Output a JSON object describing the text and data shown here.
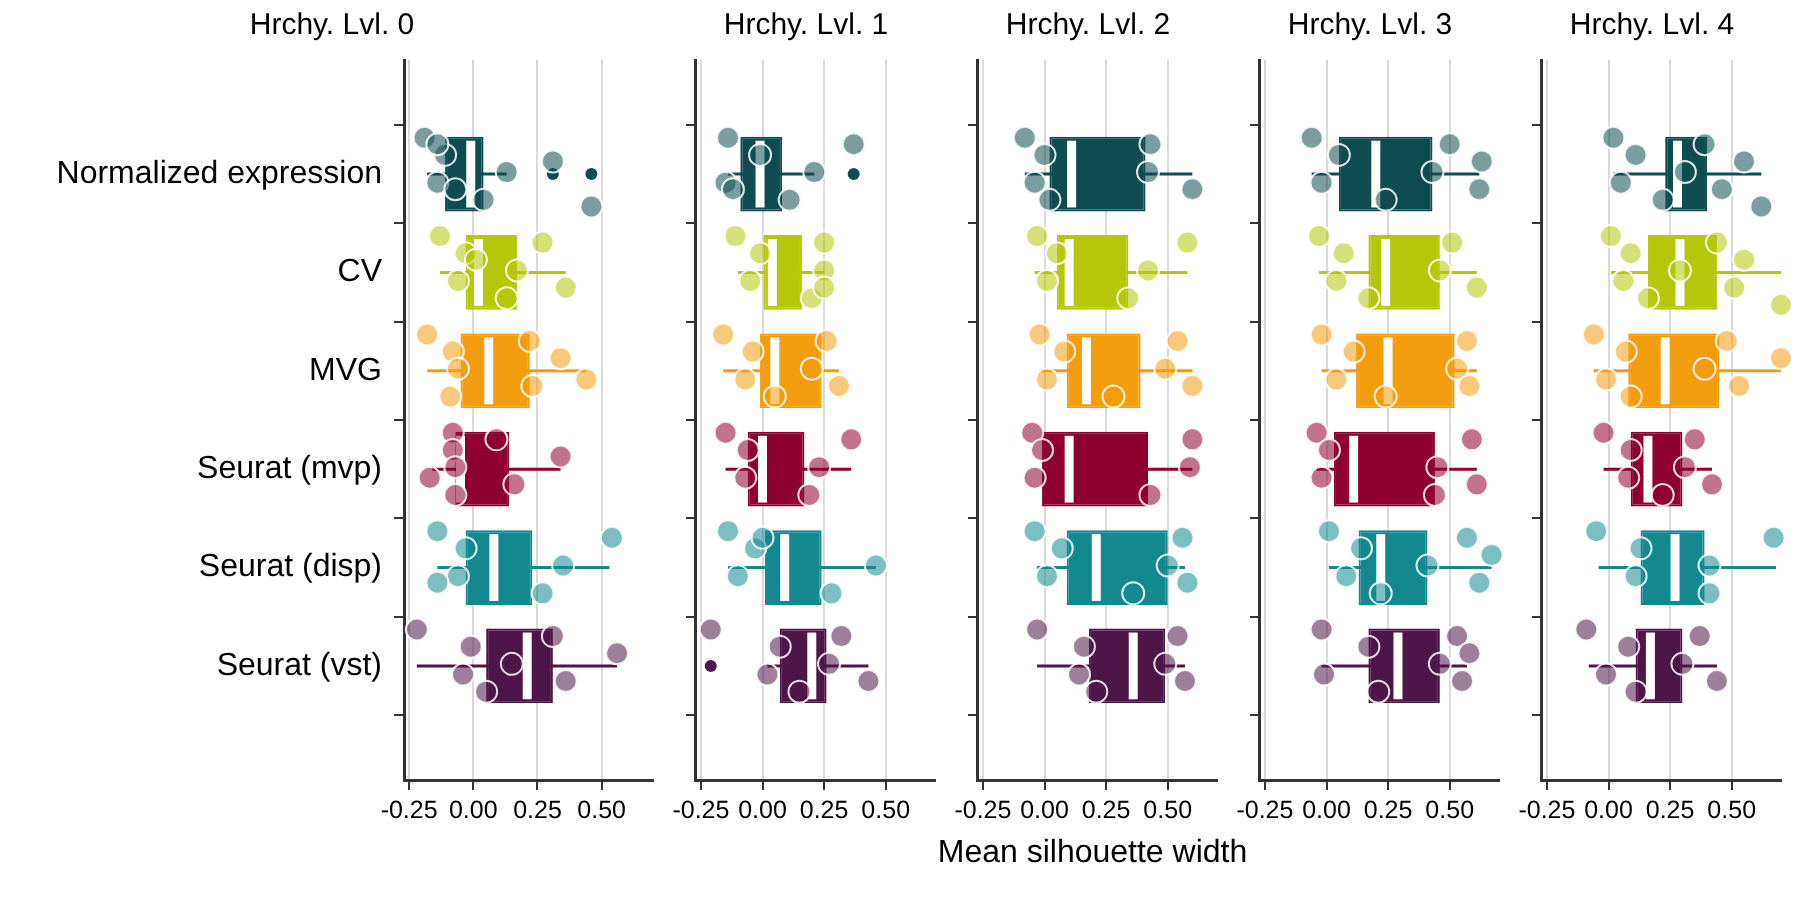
{
  "chart_data": [
    {
      "type": "box",
      "orientation": "horizontal",
      "title": "Hrchy. Lvl. 0",
      "categories": [
        "Normalized expression",
        "CV",
        "MVG",
        "Seurat (mvp)",
        "Seurat (disp)",
        "Seurat (vst)"
      ],
      "xlim": [
        -0.27,
        0.7
      ],
      "xticks": [
        {
          "value": -0.25,
          "label": "-0.25"
        },
        {
          "value": 0,
          "label": "0.00"
        },
        {
          "value": 0.25,
          "label": "0.25"
        },
        {
          "value": 0.5,
          "label": "0.50"
        }
      ],
      "grid": "x",
      "series": [
        {
          "type": "box",
          "colors": [
            "#0f4c52",
            "#b5c70a",
            "#f39c0e",
            "#8e0030",
            "#13898f",
            "#4e1548"
          ],
          "boxes": [
            {
              "low": -0.18,
              "q1": -0.11,
              "median": -0.01,
              "q3": 0.04,
              "high": 0.13,
              "outliers": [
                0.31,
                0.46
              ]
            },
            {
              "low": -0.13,
              "q1": -0.03,
              "median": 0.02,
              "q3": 0.17,
              "high": 0.36
            },
            {
              "low": -0.18,
              "q1": -0.05,
              "median": 0.06,
              "q3": 0.22,
              "high": 0.44
            },
            {
              "low": -0.16,
              "q1": -0.07,
              "median": -0.05,
              "q3": 0.14,
              "high": 0.34
            },
            {
              "low": -0.14,
              "q1": -0.03,
              "median": 0.08,
              "q3": 0.23,
              "high": 0.53
            },
            {
              "low": -0.22,
              "q1": 0.05,
              "median": 0.21,
              "q3": 0.31,
              "high": 0.56
            }
          ]
        },
        {
          "type": "scatter",
          "color": "#0f4c52",
          "x": [
            "Normalized expression",
            "Normalized expression",
            "Normalized expression",
            "Normalized expression",
            "Normalized expression",
            "Normalized expression",
            "Normalized expression",
            "Normalized expression",
            "Normalized expression"
          ],
          "values": [
            -0.19,
            -0.14,
            -0.11,
            0.04,
            0.13,
            -0.14,
            -0.07,
            0.31,
            0.46
          ]
        },
        {
          "type": "scatter",
          "color": "#b5c70a",
          "x": [
            "CV",
            "CV",
            "CV",
            "CV",
            "CV",
            "CV",
            "CV",
            "CV"
          ],
          "values": [
            -0.13,
            -0.06,
            -0.03,
            0.13,
            0.17,
            0.27,
            0.36,
            0.01
          ]
        },
        {
          "type": "scatter",
          "color": "#f39c0e",
          "x": [
            "MVG",
            "MVG",
            "MVG",
            "MVG",
            "MVG",
            "MVG",
            "MVG",
            "MVG"
          ],
          "values": [
            -0.18,
            0.44,
            -0.08,
            -0.09,
            -0.06,
            0.22,
            0.23,
            0.34
          ]
        },
        {
          "type": "scatter",
          "color": "#8e0030",
          "x": [
            "Seurat (mvp)",
            "Seurat (mvp)",
            "Seurat (mvp)",
            "Seurat (mvp)",
            "Seurat (mvp)",
            "Seurat (mvp)",
            "Seurat (mvp)",
            "Seurat (mvp)"
          ],
          "values": [
            -0.08,
            -0.17,
            -0.08,
            -0.07,
            -0.07,
            0.09,
            0.16,
            0.34
          ]
        },
        {
          "type": "scatter",
          "color": "#13898f",
          "x": [
            "Seurat (disp)",
            "Seurat (disp)",
            "Seurat (disp)",
            "Seurat (disp)",
            "Seurat (disp)",
            "Seurat (disp)",
            "Seurat (disp)"
          ],
          "values": [
            -0.14,
            -0.06,
            -0.03,
            0.27,
            0.35,
            0.54,
            -0.14
          ]
        },
        {
          "type": "scatter",
          "color": "#4e1548",
          "x": [
            "Seurat (vst)",
            "Seurat (vst)",
            "Seurat (vst)",
            "Seurat (vst)",
            "Seurat (vst)",
            "Seurat (vst)",
            "Seurat (vst)",
            "Seurat (vst)"
          ],
          "values": [
            -0.22,
            -0.04,
            -0.01,
            0.05,
            0.15,
            0.31,
            0.36,
            0.56
          ]
        }
      ]
    },
    {
      "type": "box",
      "orientation": "horizontal",
      "title": "Hrchy. Lvl. 1",
      "categories": [
        "Normalized expression",
        "CV",
        "MVG",
        "Seurat (mvp)",
        "Seurat (disp)",
        "Seurat (vst)"
      ],
      "xlim": [
        -0.27,
        0.7
      ],
      "xticks": [
        {
          "value": -0.25,
          "label": "-0.25"
        },
        {
          "value": 0,
          "label": "0.00"
        },
        {
          "value": 0.25,
          "label": "0.25"
        },
        {
          "value": 0.5,
          "label": "0.50"
        }
      ],
      "grid": "x",
      "tick_labels": "x",
      "series": [
        {
          "type": "box",
          "colors": [
            "#0f4c52",
            "#b5c70a",
            "#f39c0e",
            "#8e0030",
            "#13898f",
            "#4e1548"
          ],
          "boxes": [
            {
              "low": -0.14,
              "q1": -0.09,
              "median": -0.01,
              "q3": 0.08,
              "high": 0.21,
              "outliers": [
                0.37
              ]
            },
            {
              "low": -0.1,
              "q1": 0.0,
              "median": 0.04,
              "q3": 0.16,
              "high": 0.25
            },
            {
              "low": -0.16,
              "q1": -0.01,
              "median": 0.05,
              "q3": 0.24,
              "high": 0.31
            },
            {
              "low": -0.15,
              "q1": -0.06,
              "median": 0.0,
              "q3": 0.17,
              "high": 0.36
            },
            {
              "low": -0.14,
              "q1": 0.01,
              "median": 0.09,
              "q3": 0.24,
              "high": 0.46
            },
            {
              "low": 0.02,
              "q1": 0.07,
              "median": 0.2,
              "q3": 0.26,
              "high": 0.43,
              "outliers": [
                -0.21
              ]
            }
          ]
        },
        {
          "type": "scatter",
          "color": "#0f4c52",
          "x": [
            "Normalized expression",
            "Normalized expression",
            "Normalized expression",
            "Normalized expression",
            "Normalized expression",
            "Normalized expression",
            "Normalized expression"
          ],
          "values": [
            -0.14,
            -0.15,
            -0.01,
            0.11,
            0.21,
            0.37,
            -0.12
          ]
        },
        {
          "type": "scatter",
          "color": "#b5c70a",
          "x": [
            "CV",
            "CV",
            "CV",
            "CV",
            "CV",
            "CV",
            "CV"
          ],
          "values": [
            -0.11,
            -0.05,
            -0.01,
            0.2,
            0.25,
            0.25,
            0.25
          ]
        },
        {
          "type": "scatter",
          "color": "#f39c0e",
          "x": [
            "MVG",
            "MVG",
            "MVG",
            "MVG",
            "MVG",
            "MVG",
            "MVG"
          ],
          "values": [
            -0.16,
            -0.07,
            -0.04,
            0.05,
            0.2,
            0.26,
            0.31
          ]
        },
        {
          "type": "scatter",
          "color": "#8e0030",
          "x": [
            "Seurat (mvp)",
            "Seurat (mvp)",
            "Seurat (mvp)",
            "Seurat (mvp)",
            "Seurat (mvp)",
            "Seurat (mvp)"
          ],
          "values": [
            -0.15,
            -0.07,
            -0.06,
            0.19,
            0.23,
            0.36
          ]
        },
        {
          "type": "scatter",
          "color": "#13898f",
          "x": [
            "Seurat (disp)",
            "Seurat (disp)",
            "Seurat (disp)",
            "Seurat (disp)",
            "Seurat (disp)",
            "Seurat (disp)"
          ],
          "values": [
            -0.14,
            -0.1,
            -0.03,
            0.28,
            0.46,
            0.0
          ]
        },
        {
          "type": "scatter",
          "color": "#4e1548",
          "x": [
            "Seurat (vst)",
            "Seurat (vst)",
            "Seurat (vst)",
            "Seurat (vst)",
            "Seurat (vst)",
            "Seurat (vst)",
            "Seurat (vst)"
          ],
          "values": [
            -0.21,
            0.02,
            0.07,
            0.15,
            0.27,
            0.32,
            0.43
          ]
        }
      ]
    },
    {
      "type": "box",
      "orientation": "horizontal",
      "title": "Hrchy. Lvl. 2",
      "xlabel": "Mean silhouette width",
      "categories": [
        "Normalized expression",
        "CV",
        "MVG",
        "Seurat (mvp)",
        "Seurat (disp)",
        "Seurat (vst)"
      ],
      "xlim": [
        -0.27,
        0.7
      ],
      "xticks": [
        {
          "value": -0.25,
          "label": "-0.25"
        },
        {
          "value": 0,
          "label": "0.00"
        },
        {
          "value": 0.25,
          "label": "0.25"
        },
        {
          "value": 0.5,
          "label": "0.50"
        }
      ],
      "grid": "x",
      "tick_labels": "x",
      "series": [
        {
          "type": "box",
          "colors": [
            "#0f4c52",
            "#b5c70a",
            "#f39c0e",
            "#8e0030",
            "#13898f",
            "#4e1548"
          ],
          "boxes": [
            {
              "low": -0.08,
              "q1": 0.02,
              "median": 0.11,
              "q3": 0.41,
              "high": 0.6
            },
            {
              "low": -0.04,
              "q1": 0.05,
              "median": 0.1,
              "q3": 0.34,
              "high": 0.58
            },
            {
              "low": -0.02,
              "q1": 0.09,
              "median": 0.17,
              "q3": 0.39,
              "high": 0.6
            },
            {
              "low": -0.01,
              "q1": -0.01,
              "median": 0.1,
              "q3": 0.42,
              "high": 0.6
            },
            {
              "low": -0.03,
              "q1": 0.09,
              "median": 0.21,
              "q3": 0.5,
              "high": 0.57
            },
            {
              "low": -0.03,
              "q1": 0.18,
              "median": 0.36,
              "q3": 0.49,
              "high": 0.57
            }
          ]
        },
        {
          "type": "scatter",
          "color": "#0f4c52",
          "x": [
            "Normalized expression",
            "Normalized expression",
            "Normalized expression",
            "Normalized expression",
            "Normalized expression",
            "Normalized expression",
            "Normalized expression"
          ],
          "values": [
            -0.08,
            -0.04,
            0.0,
            0.02,
            0.42,
            0.43,
            0.6
          ]
        },
        {
          "type": "scatter",
          "color": "#b5c70a",
          "x": [
            "CV",
            "CV",
            "CV",
            "CV",
            "CV",
            "CV"
          ],
          "values": [
            -0.03,
            0.01,
            0.05,
            0.34,
            0.42,
            0.58
          ]
        },
        {
          "type": "scatter",
          "color": "#f39c0e",
          "x": [
            "MVG",
            "MVG",
            "MVG",
            "MVG",
            "MVG",
            "MVG",
            "MVG"
          ],
          "values": [
            -0.02,
            0.01,
            0.08,
            0.28,
            0.49,
            0.54,
            0.6
          ]
        },
        {
          "type": "scatter",
          "color": "#8e0030",
          "x": [
            "Seurat (mvp)",
            "Seurat (mvp)",
            "Seurat (mvp)",
            "Seurat (mvp)",
            "Seurat (mvp)",
            "Seurat (mvp)"
          ],
          "values": [
            -0.05,
            -0.04,
            -0.01,
            0.43,
            0.59,
            0.6
          ]
        },
        {
          "type": "scatter",
          "color": "#13898f",
          "x": [
            "Seurat (disp)",
            "Seurat (disp)",
            "Seurat (disp)",
            "Seurat (disp)",
            "Seurat (disp)",
            "Seurat (disp)",
            "Seurat (disp)"
          ],
          "values": [
            -0.04,
            0.01,
            0.07,
            0.36,
            0.5,
            0.56,
            0.58
          ]
        },
        {
          "type": "scatter",
          "color": "#4e1548",
          "x": [
            "Seurat (vst)",
            "Seurat (vst)",
            "Seurat (vst)",
            "Seurat (vst)",
            "Seurat (vst)",
            "Seurat (vst)",
            "Seurat (vst)"
          ],
          "values": [
            -0.03,
            0.14,
            0.16,
            0.21,
            0.49,
            0.54,
            0.57
          ]
        }
      ]
    },
    {
      "type": "box",
      "orientation": "horizontal",
      "title": "Hrchy. Lvl. 3",
      "categories": [
        "Normalized expression",
        "CV",
        "MVG",
        "Seurat (mvp)",
        "Seurat (disp)",
        "Seurat (vst)"
      ],
      "xlim": [
        -0.27,
        0.7
      ],
      "xticks": [
        {
          "value": -0.25,
          "label": "-0.25"
        },
        {
          "value": 0,
          "label": "0.00"
        },
        {
          "value": 0.25,
          "label": "0.25"
        },
        {
          "value": 0.5,
          "label": "0.50"
        }
      ],
      "grid": "x",
      "tick_labels": "x",
      "series": [
        {
          "type": "box",
          "colors": [
            "#0f4c52",
            "#b5c70a",
            "#f39c0e",
            "#8e0030",
            "#13898f",
            "#4e1548"
          ],
          "boxes": [
            {
              "low": -0.06,
              "q1": 0.05,
              "median": 0.2,
              "q3": 0.43,
              "high": 0.62
            },
            {
              "low": -0.03,
              "q1": 0.17,
              "median": 0.24,
              "q3": 0.46,
              "high": 0.61
            },
            {
              "low": -0.02,
              "q1": 0.12,
              "median": 0.25,
              "q3": 0.52,
              "high": 0.61
            },
            {
              "low": -0.04,
              "q1": 0.03,
              "median": 0.11,
              "q3": 0.44,
              "high": 0.61
            },
            {
              "low": 0.01,
              "q1": 0.13,
              "median": 0.22,
              "q3": 0.41,
              "high": 0.67
            },
            {
              "low": -0.02,
              "q1": 0.17,
              "median": 0.29,
              "q3": 0.46,
              "high": 0.57
            }
          ]
        },
        {
          "type": "scatter",
          "color": "#0f4c52",
          "x": [
            "Normalized expression",
            "Normalized expression",
            "Normalized expression",
            "Normalized expression",
            "Normalized expression",
            "Normalized expression",
            "Normalized expression",
            "Normalized expression"
          ],
          "values": [
            -0.06,
            -0.02,
            0.05,
            0.24,
            0.43,
            0.5,
            0.62,
            0.63
          ]
        },
        {
          "type": "scatter",
          "color": "#b5c70a",
          "x": [
            "CV",
            "CV",
            "CV",
            "CV",
            "CV",
            "CV",
            "CV"
          ],
          "values": [
            -0.03,
            0.04,
            0.07,
            0.17,
            0.46,
            0.51,
            0.61
          ]
        },
        {
          "type": "scatter",
          "color": "#f39c0e",
          "x": [
            "MVG",
            "MVG",
            "MVG",
            "MVG",
            "MVG",
            "MVG",
            "MVG"
          ],
          "values": [
            -0.02,
            0.04,
            0.11,
            0.24,
            0.53,
            0.57,
            0.58
          ]
        },
        {
          "type": "scatter",
          "color": "#8e0030",
          "x": [
            "Seurat (mvp)",
            "Seurat (mvp)",
            "Seurat (mvp)",
            "Seurat (mvp)",
            "Seurat (mvp)",
            "Seurat (mvp)",
            "Seurat (mvp)"
          ],
          "values": [
            -0.04,
            -0.02,
            0.01,
            0.44,
            0.45,
            0.59,
            0.61
          ]
        },
        {
          "type": "scatter",
          "color": "#13898f",
          "x": [
            "Seurat (disp)",
            "Seurat (disp)",
            "Seurat (disp)",
            "Seurat (disp)",
            "Seurat (disp)",
            "Seurat (disp)",
            "Seurat (disp)",
            "Seurat (disp)"
          ],
          "values": [
            0.01,
            0.08,
            0.14,
            0.22,
            0.41,
            0.57,
            0.62,
            0.67
          ]
        },
        {
          "type": "scatter",
          "color": "#4e1548",
          "x": [
            "Seurat (vst)",
            "Seurat (vst)",
            "Seurat (vst)",
            "Seurat (vst)",
            "Seurat (vst)",
            "Seurat (vst)",
            "Seurat (vst)",
            "Seurat (vst)"
          ],
          "values": [
            -0.02,
            -0.01,
            0.17,
            0.21,
            0.46,
            0.53,
            0.55,
            0.58
          ]
        }
      ]
    },
    {
      "type": "box",
      "orientation": "horizontal",
      "title": "Hrchy. Lvl. 4",
      "categories": [
        "Normalized expression",
        "CV",
        "MVG",
        "Seurat (mvp)",
        "Seurat (disp)",
        "Seurat (vst)"
      ],
      "xlim": [
        -0.27,
        0.7
      ],
      "xticks": [
        {
          "value": -0.25,
          "label": "-0.25"
        },
        {
          "value": 0,
          "label": "0.00"
        },
        {
          "value": 0.25,
          "label": "0.25"
        },
        {
          "value": 0.5,
          "label": "0.50"
        }
      ],
      "grid": "x",
      "tick_labels": "x",
      "series": [
        {
          "type": "box",
          "colors": [
            "#0f4c52",
            "#b5c70a",
            "#f39c0e",
            "#8e0030",
            "#13898f",
            "#4e1548"
          ],
          "boxes": [
            {
              "low": 0.02,
              "q1": 0.23,
              "median": 0.28,
              "q3": 0.4,
              "high": 0.62
            },
            {
              "low": 0.01,
              "q1": 0.16,
              "median": 0.29,
              "q3": 0.44,
              "high": 0.7
            },
            {
              "low": -0.06,
              "q1": 0.08,
              "median": 0.23,
              "q3": 0.45,
              "high": 0.7
            },
            {
              "low": -0.02,
              "q1": 0.09,
              "median": 0.16,
              "q3": 0.3,
              "high": 0.42
            },
            {
              "low": -0.04,
              "q1": 0.13,
              "median": 0.27,
              "q3": 0.39,
              "high": 0.68
            },
            {
              "low": -0.08,
              "q1": 0.11,
              "median": 0.17,
              "q3": 0.3,
              "high": 0.44
            }
          ]
        },
        {
          "type": "scatter",
          "color": "#0f4c52",
          "x": [
            "Normalized expression",
            "Normalized expression",
            "Normalized expression",
            "Normalized expression",
            "Normalized expression",
            "Normalized expression",
            "Normalized expression",
            "Normalized expression",
            "Normalized expression"
          ],
          "values": [
            0.02,
            0.05,
            0.11,
            0.22,
            0.31,
            0.39,
            0.46,
            0.55,
            0.62
          ]
        },
        {
          "type": "scatter",
          "color": "#b5c70a",
          "x": [
            "CV",
            "CV",
            "CV",
            "CV",
            "CV",
            "CV",
            "CV",
            "CV",
            "CV"
          ],
          "values": [
            0.01,
            0.06,
            0.09,
            0.16,
            0.29,
            0.44,
            0.51,
            0.55,
            0.7
          ]
        },
        {
          "type": "scatter",
          "color": "#f39c0e",
          "x": [
            "MVG",
            "MVG",
            "MVG",
            "MVG",
            "MVG",
            "MVG",
            "MVG",
            "MVG"
          ],
          "values": [
            -0.06,
            -0.01,
            0.07,
            0.09,
            0.39,
            0.48,
            0.53,
            0.7
          ]
        },
        {
          "type": "scatter",
          "color": "#8e0030",
          "x": [
            "Seurat (mvp)",
            "Seurat (mvp)",
            "Seurat (mvp)",
            "Seurat (mvp)",
            "Seurat (mvp)",
            "Seurat (mvp)",
            "Seurat (mvp)"
          ],
          "values": [
            -0.02,
            0.08,
            0.09,
            0.22,
            0.31,
            0.35,
            0.42
          ]
        },
        {
          "type": "scatter",
          "color": "#13898f",
          "x": [
            "Seurat (disp)",
            "Seurat (disp)",
            "Seurat (disp)",
            "Seurat (disp)",
            "Seurat (disp)",
            "Seurat (disp)"
          ],
          "values": [
            -0.05,
            0.11,
            0.13,
            0.41,
            0.41,
            0.67
          ]
        },
        {
          "type": "scatter",
          "color": "#4e1548",
          "x": [
            "Seurat (vst)",
            "Seurat (vst)",
            "Seurat (vst)",
            "Seurat (vst)",
            "Seurat (vst)",
            "Seurat (vst)",
            "Seurat (vst)"
          ],
          "values": [
            -0.09,
            -0.01,
            0.08,
            0.11,
            0.3,
            0.37,
            0.44
          ]
        }
      ]
    }
  ]
}
